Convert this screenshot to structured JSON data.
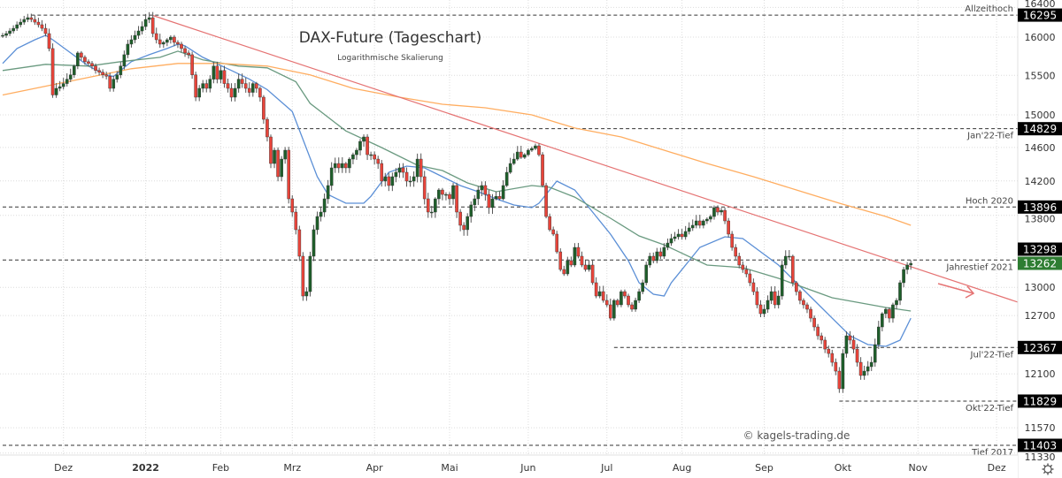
{
  "chart_data": {
    "type": "candlestick",
    "title": "DAX-Future (Tageschart)",
    "subtitle": "Logarithmische Skalierung",
    "watermark": "© kagels-trading.de",
    "y_scale": "log",
    "ylim": [
      11300,
      16450
    ],
    "grid": true,
    "y_ticks": [
      16400,
      16000,
      15500,
      15000,
      14600,
      14200,
      13800,
      13000,
      12700,
      12100,
      11570,
      11330
    ],
    "x_ticks": [
      {
        "label": "Dez",
        "date": "2021-12-01"
      },
      {
        "label": "2022",
        "date": "2022-01-03",
        "bold": true
      },
      {
        "label": "Feb",
        "date": "2022-02-01"
      },
      {
        "label": "Mrz",
        "date": "2022-03-01"
      },
      {
        "label": "Apr",
        "date": "2022-04-01"
      },
      {
        "label": "Mai",
        "date": "2022-05-02"
      },
      {
        "label": "Jun",
        "date": "2022-06-01"
      },
      {
        "label": "Jul",
        "date": "2022-07-01"
      },
      {
        "label": "Aug",
        "date": "2022-08-01"
      },
      {
        "label": "Sep",
        "date": "2022-09-01"
      },
      {
        "label": "Okt",
        "date": "2022-10-03"
      },
      {
        "label": "Nov",
        "date": "2022-11-01"
      },
      {
        "label": "Dez",
        "date": "2022-12-01"
      }
    ],
    "colors": {
      "up": "#1e5e2a",
      "down": "#e8443a",
      "wick": "#555555",
      "trendline": "#e57373",
      "level_box": "#000000",
      "last_price_box": "#2e7d32"
    },
    "candles_weekly": [
      {
        "start": "2021-11-08",
        "close": [
          16023,
          16047,
          16082,
          16117,
          16165
        ]
      },
      {
        "start": "2021-11-15",
        "close": [
          16200,
          16236,
          16260,
          16236,
          16200
        ]
      },
      {
        "start": "2021-11-22",
        "close": [
          16165,
          16117,
          16047,
          15849,
          15250
        ]
      },
      {
        "start": "2021-11-29",
        "close": [
          15334,
          15356,
          15395,
          15451,
          15507
        ]
      },
      {
        "start": "2021-12-06",
        "close": [
          15620,
          15791,
          15734,
          15677,
          15654
        ]
      },
      {
        "start": "2021-12-13",
        "close": [
          15620,
          15563,
          15540,
          15507,
          15490
        ]
      },
      {
        "start": "2021-12-20",
        "close": [
          15334,
          15451,
          15507,
          15620,
          15768
        ]
      },
      {
        "start": "2021-12-27",
        "close": [
          15907,
          15965,
          16023,
          16082,
          16141
        ]
      },
      {
        "start": "2022-01-03",
        "close": [
          16236,
          16260,
          16047,
          15965,
          15907
        ]
      },
      {
        "start": "2022-01-10",
        "close": [
          15930,
          15965,
          16000,
          15930,
          15907
        ]
      },
      {
        "start": "2022-01-17",
        "close": [
          15849,
          15791,
          15768,
          15507,
          15222
        ]
      },
      {
        "start": "2022-01-24",
        "close": [
          15334,
          15395,
          15334,
          15451,
          15620
        ]
      },
      {
        "start": "2022-01-31",
        "close": [
          15451,
          15563,
          15395,
          15334,
          15222
        ]
      },
      {
        "start": "2022-02-07",
        "close": [
          15334,
          15451,
          15395,
          15334,
          15283
        ]
      },
      {
        "start": "2022-02-14",
        "close": [
          15395,
          15334,
          15222,
          14945,
          14728
        ]
      },
      {
        "start": "2022-02-21",
        "close": [
          14407,
          14567,
          14250,
          14460,
          14567
        ]
      },
      {
        "start": "2022-02-28",
        "close": [
          13991,
          13838,
          13637,
          13340,
          12907
        ]
      },
      {
        "start": "2022-03-07",
        "close": [
          12954,
          13340,
          13637,
          13787,
          13838
        ]
      },
      {
        "start": "2022-03-14",
        "close": [
          13991,
          14146,
          14355,
          14407,
          14355
        ]
      },
      {
        "start": "2022-03-21",
        "close": [
          14407,
          14355,
          14460,
          14513,
          14567
        ]
      },
      {
        "start": "2022-03-28",
        "close": [
          14674,
          14728,
          14513,
          14513,
          14460
        ]
      },
      {
        "start": "2022-04-04",
        "close": [
          14407,
          14198,
          14250,
          14146,
          14250
        ]
      },
      {
        "start": "2022-04-11",
        "close": [
          14302,
          14355,
          14302,
          14198,
          14198
        ]
      },
      {
        "start": "2022-04-18",
        "close": [
          14250,
          14460,
          14250,
          13991,
          13838
        ]
      },
      {
        "start": "2022-04-25",
        "close": [
          13838,
          13991,
          14094,
          14042,
          14042
        ]
      },
      {
        "start": "2022-05-02",
        "close": [
          13991,
          14146,
          13838,
          13687,
          13637
        ]
      },
      {
        "start": "2022-05-09",
        "close": [
          13787,
          13920,
          13991,
          14094,
          14146
        ]
      },
      {
        "start": "2022-05-16",
        "close": [
          14042,
          13889,
          13991,
          14020,
          13991
        ]
      },
      {
        "start": "2022-05-23",
        "close": [
          14146,
          14302,
          14407,
          14460,
          14545
        ]
      },
      {
        "start": "2022-05-30",
        "close": [
          14481,
          14513,
          14567,
          14588,
          14620
        ]
      },
      {
        "start": "2022-06-06",
        "close": [
          14513,
          14146,
          13787,
          13637,
          13587
        ]
      },
      {
        "start": "2022-06-13",
        "close": [
          13389,
          13194,
          13146,
          13291,
          13243
        ]
      },
      {
        "start": "2022-06-20",
        "close": [
          13438,
          13340,
          13243,
          13194,
          13243
        ]
      },
      {
        "start": "2022-06-27",
        "close": [
          13050,
          12907,
          12954,
          12860,
          12813
        ]
      },
      {
        "start": "2022-07-04",
        "close": [
          12672,
          12860,
          12813,
          12954,
          12907
        ]
      },
      {
        "start": "2022-07-11",
        "close": [
          12813,
          12766,
          12860,
          12954,
          13050
        ]
      },
      {
        "start": "2022-07-18",
        "close": [
          13243,
          13340,
          13291,
          13389,
          13340
        ]
      },
      {
        "start": "2022-07-25",
        "close": [
          13438,
          13487,
          13537,
          13557,
          13587
        ]
      },
      {
        "start": "2022-08-01",
        "close": [
          13557,
          13617,
          13657,
          13687,
          13737
        ]
      },
      {
        "start": "2022-08-08",
        "close": [
          13687,
          13737,
          13757,
          13787,
          13889
        ]
      },
      {
        "start": "2022-08-15",
        "close": [
          13838,
          13858,
          13737,
          13587,
          13438
        ]
      },
      {
        "start": "2022-08-22",
        "close": [
          13340,
          13243,
          13194,
          13146,
          13050
        ]
      },
      {
        "start": "2022-08-29",
        "close": [
          12954,
          12813,
          12719,
          12766,
          12860
        ]
      },
      {
        "start": "2022-09-05",
        "close": [
          12954,
          12813,
          12907,
          13243,
          13340
        ]
      },
      {
        "start": "2022-09-12",
        "close": [
          13340,
          13050,
          12954,
          12860,
          12813
        ]
      },
      {
        "start": "2022-09-19",
        "close": [
          12766,
          12672,
          12580,
          12488,
          12443
        ]
      },
      {
        "start": "2022-09-26",
        "close": [
          12351,
          12306,
          12216,
          12127,
          11951
        ]
      },
      {
        "start": "2022-10-03",
        "close": [
          12306,
          12488,
          12443,
          12351,
          12216
        ]
      },
      {
        "start": "2022-10-10",
        "close": [
          12083,
          12127,
          12172,
          12216,
          12397
        ]
      },
      {
        "start": "2022-10-17",
        "close": [
          12580,
          12719,
          12766,
          12672,
          12813
        ]
      },
      {
        "start": "2022-10-24",
        "close": [
          12860,
          13050,
          13194,
          13243,
          13262
        ]
      }
    ],
    "moving_averages": [
      {
        "color": "#5b8fd6",
        "points": [
          [
            "2021-11-08",
            15654
          ],
          [
            "2021-11-12",
            15849
          ],
          [
            "2021-11-19",
            15965
          ],
          [
            "2021-11-24",
            16023
          ],
          [
            "2021-11-26",
            15965
          ],
          [
            "2021-12-03",
            15791
          ],
          [
            "2021-12-10",
            15620
          ],
          [
            "2021-12-17",
            15507
          ],
          [
            "2021-12-21",
            15485
          ],
          [
            "2021-12-28",
            15677
          ],
          [
            "2022-01-04",
            15768
          ],
          [
            "2022-01-11",
            15849
          ],
          [
            "2022-01-14",
            15907
          ],
          [
            "2022-01-18",
            15884
          ],
          [
            "2022-01-25",
            15734
          ],
          [
            "2022-02-04",
            15563
          ],
          [
            "2022-02-11",
            15451
          ],
          [
            "2022-02-18",
            15317
          ],
          [
            "2022-03-01",
            15043
          ],
          [
            "2022-03-10",
            14250
          ],
          [
            "2022-03-15",
            14042
          ],
          [
            "2022-03-22",
            13940
          ],
          [
            "2022-03-29",
            13940
          ],
          [
            "2022-03-31",
            14020
          ],
          [
            "2022-04-07",
            14302
          ],
          [
            "2022-04-14",
            14376
          ],
          [
            "2022-04-21",
            14355
          ],
          [
            "2022-04-28",
            14250
          ],
          [
            "2022-05-05",
            14146
          ],
          [
            "2022-05-12",
            14073
          ],
          [
            "2022-05-19",
            13991
          ],
          [
            "2022-05-26",
            13920
          ],
          [
            "2022-06-02",
            13889
          ],
          [
            "2022-06-06",
            13940
          ],
          [
            "2022-06-09",
            14094
          ],
          [
            "2022-06-13",
            14198
          ],
          [
            "2022-06-20",
            14094
          ],
          [
            "2022-06-27",
            13838
          ],
          [
            "2022-07-04",
            13587
          ],
          [
            "2022-07-11",
            13291
          ],
          [
            "2022-07-14",
            13050
          ],
          [
            "2022-07-20",
            12926
          ],
          [
            "2022-07-25",
            12907
          ],
          [
            "2022-07-27",
            13050
          ],
          [
            "2022-08-08",
            13438
          ],
          [
            "2022-08-17",
            13557
          ],
          [
            "2022-08-24",
            13537
          ],
          [
            "2022-08-31",
            13389
          ],
          [
            "2022-09-07",
            13243
          ],
          [
            "2022-09-14",
            13050
          ],
          [
            "2022-09-21",
            12860
          ],
          [
            "2022-09-28",
            12672
          ],
          [
            "2022-10-05",
            12488
          ],
          [
            "2022-10-12",
            12397
          ],
          [
            "2022-10-19",
            12379
          ],
          [
            "2022-10-25",
            12443
          ],
          [
            "2022-10-28",
            12672
          ]
        ]
      },
      {
        "color": "#6a9a80",
        "points": [
          [
            "2021-11-08",
            15563
          ],
          [
            "2021-11-24",
            15643
          ],
          [
            "2021-12-10",
            15620
          ],
          [
            "2021-12-23",
            15677
          ],
          [
            "2022-01-07",
            15734
          ],
          [
            "2022-01-14",
            15814
          ],
          [
            "2022-01-25",
            15700
          ],
          [
            "2022-02-08",
            15620
          ],
          [
            "2022-02-18",
            15597
          ],
          [
            "2022-03-02",
            15418
          ],
          [
            "2022-03-08",
            15144
          ],
          [
            "2022-03-22",
            14801
          ],
          [
            "2022-04-05",
            14599
          ],
          [
            "2022-04-19",
            14386
          ],
          [
            "2022-04-28",
            14323
          ],
          [
            "2022-05-09",
            14177
          ],
          [
            "2022-05-19",
            14073
          ],
          [
            "2022-06-02",
            14146
          ],
          [
            "2022-06-09",
            14125
          ],
          [
            "2022-06-20",
            14011
          ],
          [
            "2022-07-04",
            13767
          ],
          [
            "2022-07-14",
            13567
          ],
          [
            "2022-07-25",
            13467
          ],
          [
            "2022-08-10",
            13243
          ],
          [
            "2022-08-24",
            13214
          ],
          [
            "2022-09-07",
            13098
          ],
          [
            "2022-09-28",
            12888
          ],
          [
            "2022-10-19",
            12785
          ],
          [
            "2022-10-28",
            12747
          ]
        ]
      },
      {
        "color": "#ffad60",
        "points": [
          [
            "2021-11-08",
            15250
          ],
          [
            "2021-12-10",
            15474
          ],
          [
            "2021-12-28",
            15586
          ],
          [
            "2022-01-14",
            15654
          ],
          [
            "2022-02-01",
            15654
          ],
          [
            "2022-02-18",
            15620
          ],
          [
            "2022-03-08",
            15507
          ],
          [
            "2022-03-24",
            15334
          ],
          [
            "2022-04-12",
            15222
          ],
          [
            "2022-04-28",
            15133
          ],
          [
            "2022-05-16",
            15089
          ],
          [
            "2022-06-02",
            15000
          ],
          [
            "2022-06-20",
            14837
          ],
          [
            "2022-07-07",
            14728
          ],
          [
            "2022-07-25",
            14567
          ],
          [
            "2022-08-10",
            14407
          ],
          [
            "2022-08-29",
            14250
          ],
          [
            "2022-09-14",
            14094
          ],
          [
            "2022-09-30",
            13940
          ],
          [
            "2022-10-19",
            13787
          ],
          [
            "2022-10-28",
            13687
          ]
        ]
      }
    ],
    "trendline": {
      "points": [
        [
          "2022-01-05",
          16290
        ],
        [
          "2022-10-28",
          13225
        ]
      ],
      "extend": "right"
    },
    "levels": [
      {
        "price": 16295,
        "value_label": "16295",
        "label": "Allzeithoch",
        "label_side": "above",
        "from": "2021-11-18"
      },
      {
        "price": 14829,
        "value_label": "14829",
        "label": "Jan'22-Tief",
        "label_side": "below",
        "from": "2022-01-20"
      },
      {
        "price": 13896,
        "value_label": "13896",
        "label": "Hoch 2020",
        "label_side": "above",
        "from": "2021-11-08"
      },
      {
        "price": 13298,
        "value_label": "13298",
        "label": "Jahrestief 2021",
        "label_side": "below",
        "from": "2021-11-08"
      },
      {
        "price": 12367,
        "value_label": "12367",
        "label": "Jul'22-Tief",
        "label_side": "below",
        "from": "2022-07-05"
      },
      {
        "price": 11829,
        "value_label": "11829",
        "label": "Okt'22-Tief",
        "label_side": "below",
        "from": "2022-09-30"
      },
      {
        "price": 11403,
        "value_label": "11403",
        "label": "Tief 2017",
        "label_side": "below",
        "from": "2021-11-08"
      }
    ],
    "last_price": {
      "price": 13262,
      "value_label": "13262"
    }
  },
  "axis": {
    "settings_icon": "gear-icon"
  }
}
